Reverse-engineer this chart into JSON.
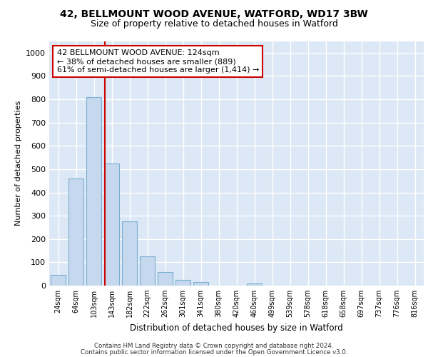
{
  "title_line1": "42, BELLMOUNT WOOD AVENUE, WATFORD, WD17 3BW",
  "title_line2": "Size of property relative to detached houses in Watford",
  "xlabel": "Distribution of detached houses by size in Watford",
  "ylabel": "Number of detached properties",
  "categories": [
    "24sqm",
    "64sqm",
    "103sqm",
    "143sqm",
    "182sqm",
    "222sqm",
    "262sqm",
    "301sqm",
    "341sqm",
    "380sqm",
    "420sqm",
    "460sqm",
    "499sqm",
    "539sqm",
    "578sqm",
    "618sqm",
    "658sqm",
    "697sqm",
    "737sqm",
    "776sqm",
    "816sqm"
  ],
  "values": [
    47,
    460,
    810,
    525,
    275,
    125,
    57,
    25,
    15,
    0,
    0,
    10,
    0,
    0,
    0,
    0,
    0,
    0,
    0,
    0,
    0
  ],
  "bar_color": "#c5d8ed",
  "bar_edge_color": "#7aafd4",
  "vline_color": "#cc0000",
  "annotation_text": "42 BELLMOUNT WOOD AVENUE: 124sqm\n← 38% of detached houses are smaller (889)\n61% of semi-detached houses are larger (1,414) →",
  "annotation_box_color": "#ffffff",
  "annotation_box_edge_color": "#cc0000",
  "ylim": [
    0,
    1050
  ],
  "yticks": [
    0,
    100,
    200,
    300,
    400,
    500,
    600,
    700,
    800,
    900,
    1000
  ],
  "bg_color": "#dce8f5",
  "grid_color": "#ffffff",
  "footer_line1": "Contains HM Land Registry data © Crown copyright and database right 2024.",
  "footer_line2": "Contains public sector information licensed under the Open Government Licence v3.0."
}
